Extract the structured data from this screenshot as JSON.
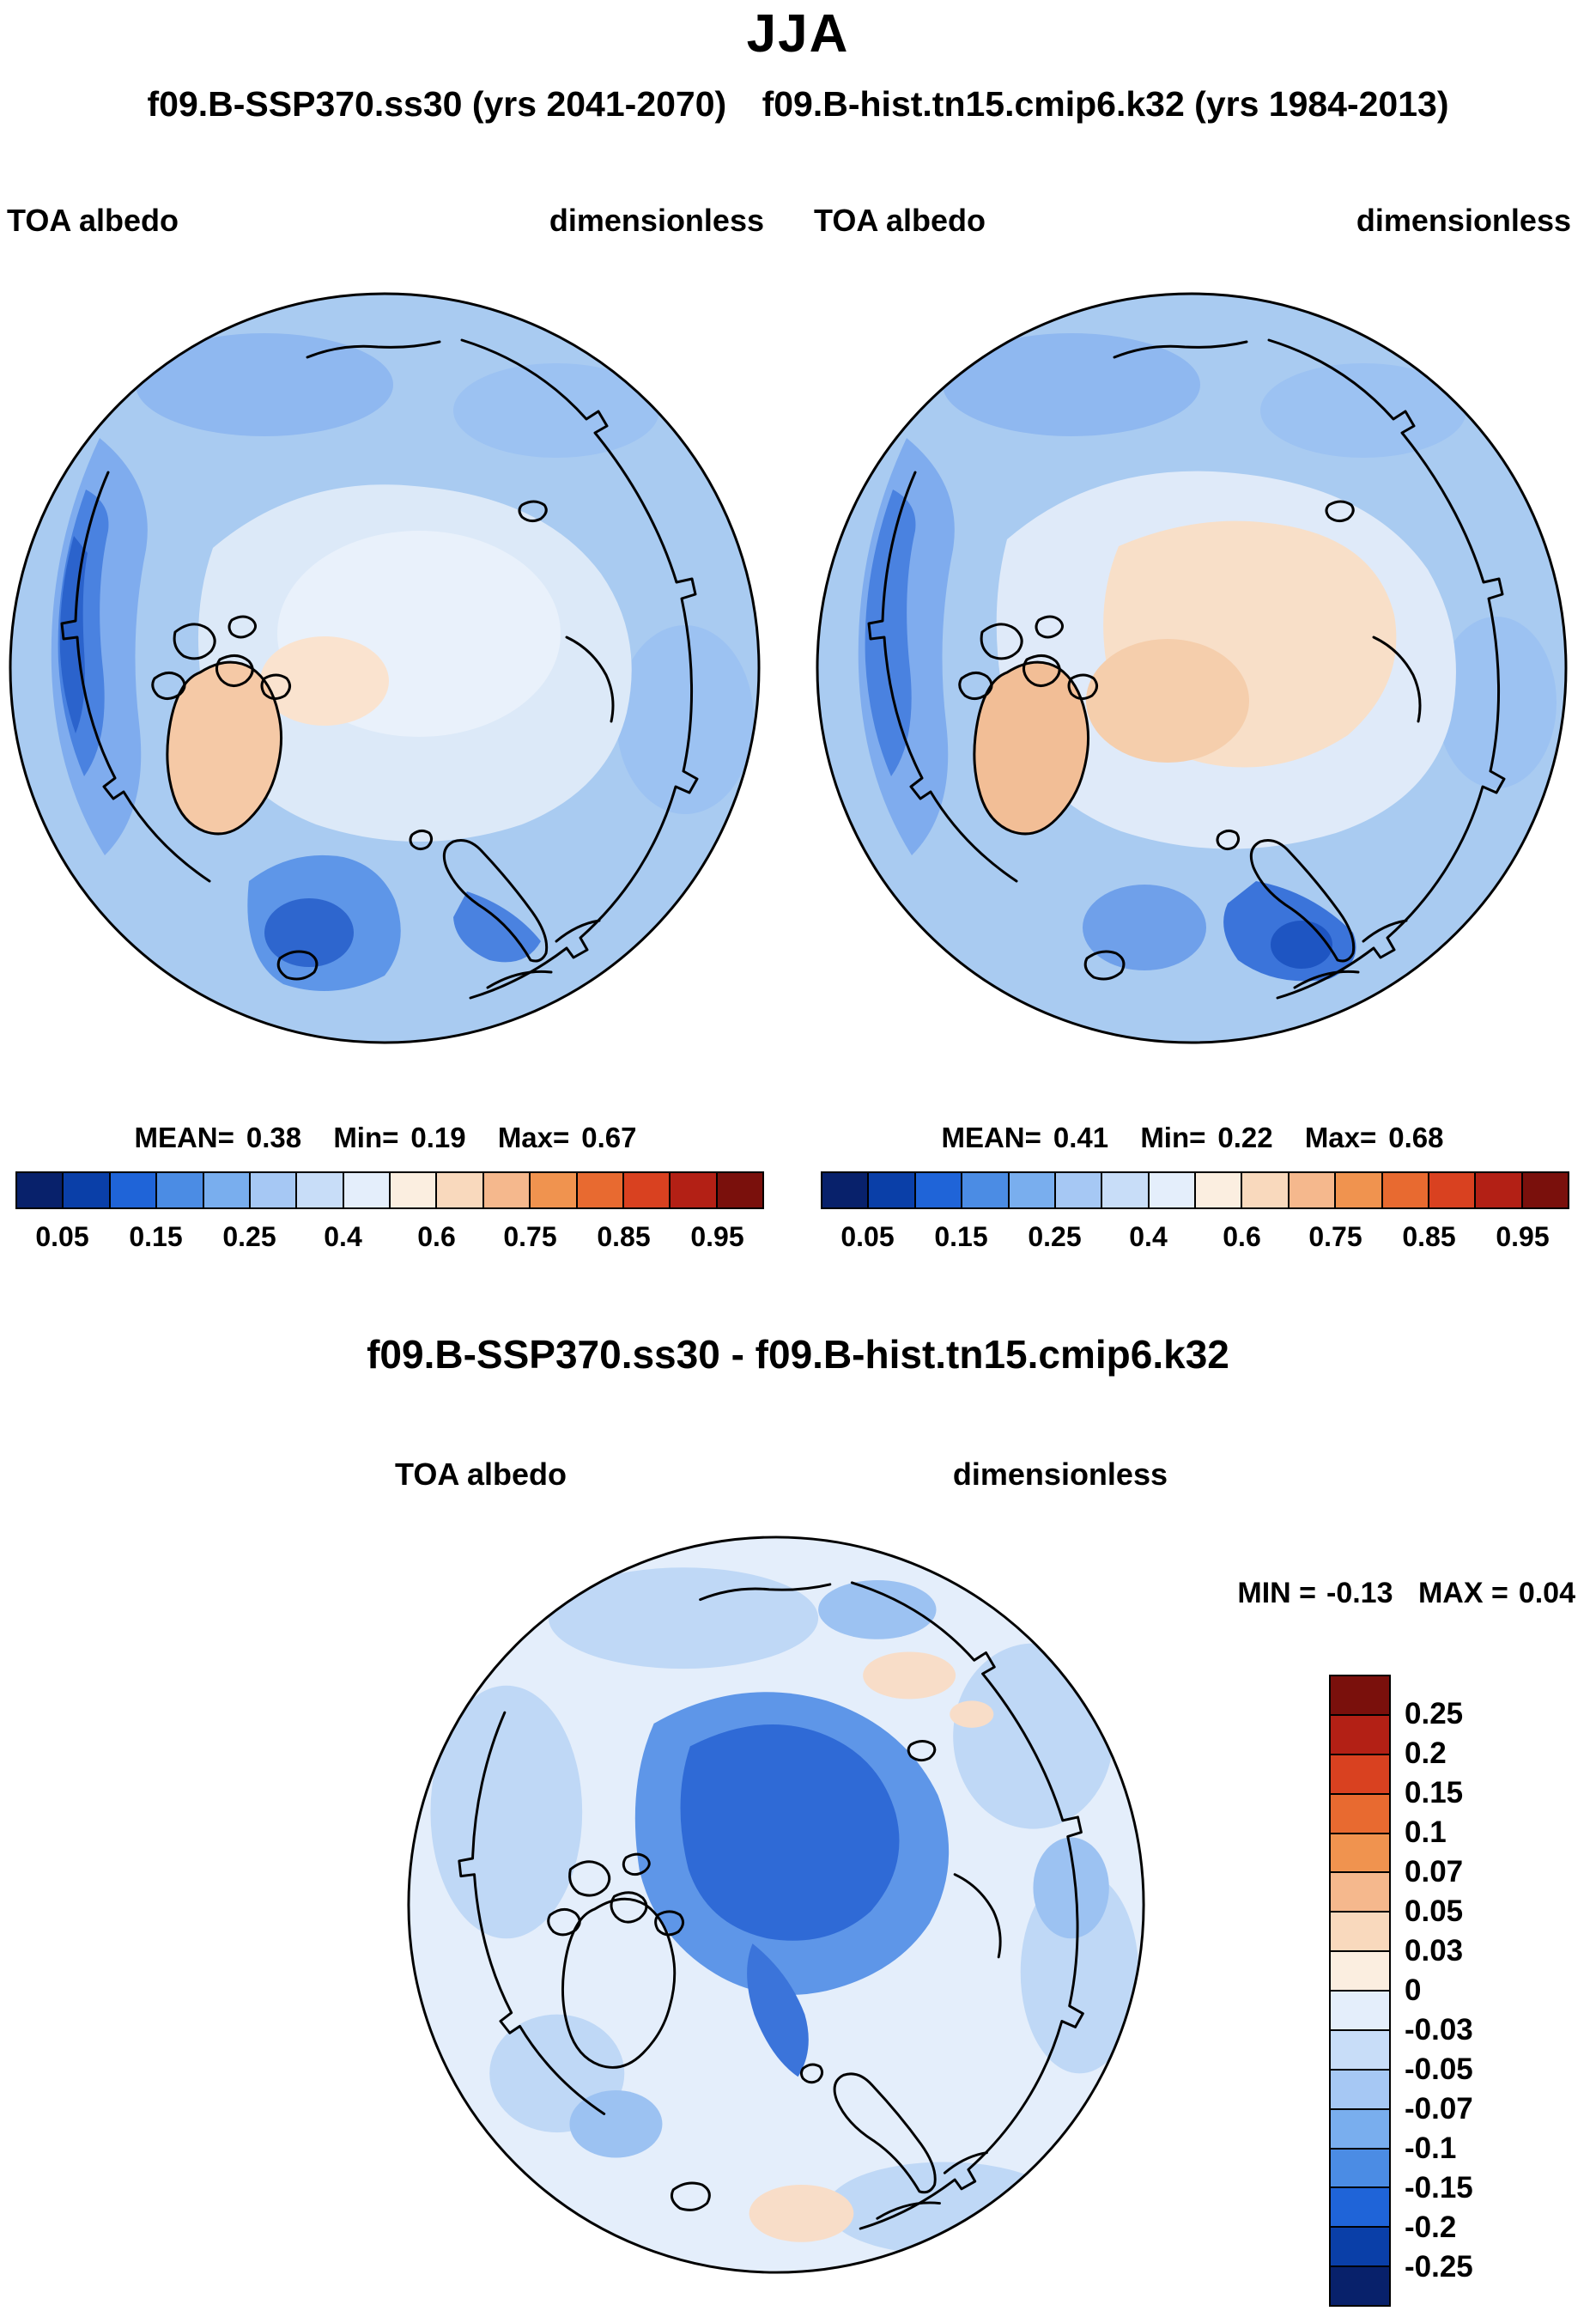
{
  "page": {
    "title": "JJA",
    "run_left": "f09.B-SSP370.ss30 (yrs 2041-2070)",
    "run_right": "f09.B-hist.tn15.cmip6.k32 (yrs 1984-2013)",
    "diff_title": "f09.B-SSP370.ss30 - f09.B-hist.tn15.cmip6.k32"
  },
  "panels": {
    "left": {
      "var_label": "TOA albedo",
      "units_label": "dimensionless",
      "stats": {
        "mean_label": "MEAN=",
        "mean": "0.38",
        "min_label": "Min=",
        "min": "0.19",
        "max_label": "Max=",
        "max": "0.67"
      }
    },
    "right": {
      "var_label": "TOA albedo",
      "units_label": "dimensionless",
      "stats": {
        "mean_label": "MEAN=",
        "mean": "0.41",
        "min_label": "Min=",
        "min": "0.22",
        "max_label": "Max=",
        "max": "0.68"
      }
    },
    "diff": {
      "var_label": "TOA albedo",
      "units_label": "dimensionless",
      "stats": {
        "min_label": "MIN =",
        "min": "-0.13",
        "max_label": "MAX =",
        "max": "0.04"
      }
    }
  },
  "colorbar_abs": {
    "ticks": [
      "0.05",
      "0.15",
      "0.25",
      "0.4",
      "0.6",
      "0.75",
      "0.85",
      "0.95"
    ],
    "colors": [
      "#08216B",
      "#0A3FA8",
      "#1F64D8",
      "#4B8CE4",
      "#79AEEE",
      "#A6C8F4",
      "#C8DDF8",
      "#E4EEFB",
      "#FBEEE0",
      "#F9D9BD",
      "#F5B88D",
      "#F0934F",
      "#E86A30",
      "#D94120",
      "#B32015",
      "#7A100C"
    ]
  },
  "colorbar_diff": {
    "ticks": [
      "0.25",
      "0.2",
      "0.15",
      "0.1",
      "0.07",
      "0.05",
      "0.03",
      "0",
      "-0.03",
      "-0.05",
      "-0.07",
      "-0.1",
      "-0.15",
      "-0.2",
      "-0.25"
    ],
    "colors": [
      "#7A100C",
      "#B32015",
      "#D94120",
      "#E86A30",
      "#F0934F",
      "#F5B88D",
      "#F9D9BD",
      "#FBEEE0",
      "#E4EEFB",
      "#C8DDF8",
      "#A6C8F4",
      "#79AEEE",
      "#4B8CE4",
      "#1F64D8",
      "#0A3FA8",
      "#08216B"
    ]
  },
  "chart_data": [
    {
      "type": "heatmap",
      "title": "JJA",
      "panel": "f09.B-SSP370.ss30 (yrs 2041-2070)",
      "variable": "TOA albedo",
      "units": "dimensionless",
      "projection": "north polar stereographic map",
      "stats": {
        "mean": 0.38,
        "min": 0.19,
        "max": 0.67
      },
      "colorbar_ticks": [
        0.05,
        0.15,
        0.25,
        0.4,
        0.6,
        0.75,
        0.85,
        0.95
      ],
      "palette": "blue (low albedo ocean) to white to red (high albedo), 16 discrete levels",
      "legend_position": "below, horizontal"
    },
    {
      "type": "heatmap",
      "title": "JJA",
      "panel": "f09.B-hist.tn15.cmip6.k32 (yrs 1984-2013)",
      "variable": "TOA albedo",
      "units": "dimensionless",
      "projection": "north polar stereographic map",
      "stats": {
        "mean": 0.41,
        "min": 0.22,
        "max": 0.68
      },
      "colorbar_ticks": [
        0.05,
        0.15,
        0.25,
        0.4,
        0.6,
        0.75,
        0.85,
        0.95
      ],
      "palette": "blue (low albedo ocean) to white to red (high albedo), 16 discrete levels",
      "legend_position": "below, horizontal"
    },
    {
      "type": "heatmap",
      "title": "f09.B-SSP370.ss30 - f09.B-hist.tn15.cmip6.k32",
      "panel": "difference map",
      "variable": "TOA albedo",
      "units": "dimensionless",
      "projection": "north polar stereographic map",
      "stats": {
        "min": -0.13,
        "max": 0.04
      },
      "colorbar_ticks": [
        0.25,
        0.2,
        0.15,
        0.1,
        0.07,
        0.05,
        0.03,
        0,
        -0.03,
        -0.05,
        -0.07,
        -0.1,
        -0.15,
        -0.2,
        -0.25
      ],
      "palette": "red (positive) at top to blue (negative) at bottom, 16 discrete levels",
      "legend_position": "right, vertical"
    }
  ]
}
